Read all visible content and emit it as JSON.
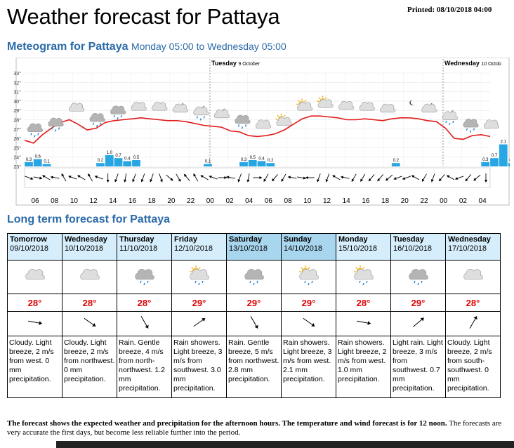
{
  "header": {
    "title": "Weather forecast for Pattaya",
    "printed": "Printed: 08/10/2018 04:00"
  },
  "meteogram": {
    "title": "Meteogram for Pattaya",
    "subtitle": "Monday 05:00 to Wednesday 05:00",
    "day_labels": [
      {
        "day": "Tuesday",
        "date": "9 October"
      },
      {
        "day": "Wednesday",
        "date": "10 Octob"
      }
    ],
    "chart_data": {
      "type": "line",
      "y_ticks": [
        "23°",
        "24°",
        "25°",
        "26°",
        "27°",
        "28°",
        "29°",
        "30°",
        "31°",
        "32°",
        "33°"
      ],
      "ylim": [
        23,
        33
      ],
      "x_labels": [
        "06",
        "08",
        "10",
        "12",
        "14",
        "16",
        "18",
        "20",
        "22",
        "00",
        "02",
        "04",
        "06",
        "08",
        "10",
        "12",
        "14",
        "16",
        "18",
        "20",
        "22",
        "00",
        "02",
        "04"
      ],
      "temperature": [
        25.8,
        25.5,
        26.4,
        27.1,
        27.7,
        28.0,
        27.5,
        26.9,
        27.1,
        27.7,
        27.9,
        28.0,
        28.1,
        28.2,
        28.1,
        28.0,
        27.9,
        27.9,
        27.8,
        27.6,
        27.4,
        27.3,
        27.2,
        26.8,
        26.7,
        26.3,
        26.2,
        26.3,
        26.5,
        26.9,
        27.5,
        28.1,
        28.4,
        28.4,
        28.3,
        28.2,
        28.0,
        28.0,
        28.1,
        28.0,
        27.9,
        28.1,
        28.2,
        28.2,
        28.1,
        27.9,
        27.8,
        27.1,
        26.0,
        25.9,
        26.3,
        26.4,
        26.2
      ],
      "precipitation": [
        {
          "x": 0,
          "value": 0.3,
          "label": "0.3"
        },
        {
          "x": 1,
          "value": 0.6,
          "label": "0.6"
        },
        {
          "x": 2,
          "value": 0.1,
          "label": "0.1"
        },
        {
          "x": 8,
          "value": 0.2,
          "label": "0.2"
        },
        {
          "x": 9,
          "value": 1.0,
          "label": "1.0"
        },
        {
          "x": 10,
          "value": 0.7,
          "label": "0.7"
        },
        {
          "x": 11,
          "value": 0.4,
          "label": "0.4"
        },
        {
          "x": 12,
          "value": 0.5,
          "label": "0.5"
        },
        {
          "x": 20,
          "value": 0.1,
          "label": "0.1"
        },
        {
          "x": 24,
          "value": 0.3,
          "label": "0.3"
        },
        {
          "x": 25,
          "value": 0.5,
          "label": "0.5"
        },
        {
          "x": 26,
          "value": 0.4,
          "label": "0.4"
        },
        {
          "x": 27,
          "value": 0.2,
          "label": "0.2"
        },
        {
          "x": 41,
          "value": 0.2,
          "label": "0.2"
        },
        {
          "x": 51,
          "value": 0.3,
          "label": "0.3"
        },
        {
          "x": 52,
          "value": 0.7,
          "label": "0.7"
        },
        {
          "x": 53,
          "value": 2.1,
          "label": "2.1"
        },
        {
          "x": 54,
          "value": 0.2,
          "label": "0.2"
        }
      ],
      "wind_directions_deg": [
        110,
        100,
        300,
        280,
        330,
        290,
        300,
        330,
        290,
        180,
        200,
        190,
        200,
        200,
        200,
        160,
        130,
        150,
        320,
        330,
        300,
        290,
        90,
        280,
        200,
        190,
        90,
        210,
        220,
        210,
        280,
        100,
        270,
        200,
        200,
        300,
        280,
        210,
        210,
        220,
        220,
        230,
        250,
        250,
        300,
        210,
        200,
        220,
        300,
        250,
        220,
        230,
        180
      ],
      "symbols": [
        "cloud-rain",
        "cloud-rain",
        "cloud",
        "cloud-rain",
        "cloud-rain",
        "cloud",
        "cloud",
        "moon-cloud",
        "moon-cloud-rain",
        "moon-cloud",
        "cloud-rain",
        "cloud",
        "sun-cloud",
        "sun-cloud",
        "sun-cloud",
        "cloud",
        "cloud",
        "cloud",
        "moon",
        "moon-cloud",
        "moon-cloud-rain",
        "cloud-rain",
        "cloud"
      ]
    }
  },
  "long_term": {
    "title": "Long term forecast for Pattaya",
    "days": [
      {
        "day": "Tomorrow",
        "date": "09/10/2018",
        "weekend": false,
        "symbol": "cloud",
        "temp": "28°",
        "wind_deg": 100,
        "text": "Cloudy. Light breeze, 2 m/s from west. 0 mm precipitation."
      },
      {
        "day": "Wednesday",
        "date": "10/10/2018",
        "weekend": false,
        "symbol": "cloud",
        "temp": "28°",
        "wind_deg": 125,
        "text": "Cloudy. Light breeze, 2 m/s from northwest. 0 mm precipitation."
      },
      {
        "day": "Thursday",
        "date": "11/10/2018",
        "weekend": false,
        "symbol": "cloud-rain",
        "temp": "28°",
        "wind_deg": 150,
        "text": "Rain. Gentle breeze, 4 m/s from north-northwest. 1.2 mm precipitation."
      },
      {
        "day": "Friday",
        "date": "12/10/2018",
        "weekend": false,
        "symbol": "sun-cloud-rain",
        "temp": "29°",
        "wind_deg": 55,
        "text": "Rain showers. Light breeze, 3 m/s from southwest. 3.0 mm precipitation."
      },
      {
        "day": "Saturday",
        "date": "13/10/2018",
        "weekend": true,
        "symbol": "cloud-rain",
        "temp": "29°",
        "wind_deg": 150,
        "text": "Rain. Gentle breeze, 5 m/s from northwest. 2.8 mm precipitation."
      },
      {
        "day": "Sunday",
        "date": "14/10/2018",
        "weekend": true,
        "symbol": "sun-cloud-rain",
        "temp": "29°",
        "wind_deg": 125,
        "text": "Rain showers. Light breeze, 3 m/s from west. 2.1 mm precipitation."
      },
      {
        "day": "Monday",
        "date": "15/10/2018",
        "weekend": false,
        "symbol": "sun-cloud-rain",
        "temp": "28°",
        "wind_deg": 100,
        "text": "Rain showers. Light breeze, 2 m/s from west. 1.0 mm precipitation."
      },
      {
        "day": "Tuesday",
        "date": "16/10/2018",
        "weekend": false,
        "symbol": "cloud-rain",
        "temp": "29°",
        "wind_deg": 50,
        "text": "Light rain. Light breeze, 3 m/s from southwest. 0.7 mm precipitation."
      },
      {
        "day": "Wednesday",
        "date": "17/10/2018",
        "weekend": false,
        "symbol": "cloud",
        "temp": "28°",
        "wind_deg": 30,
        "text": "Cloudy. Light breeze, 2 m/s from south-southwest. 0 mm precipitation."
      }
    ]
  },
  "footnote": {
    "bold": "The forecast shows the expected weather and precipitation for the afternoon hours. The temperature and wind forecast is for 12 noon.",
    "normal": "The forecasts are very accurate the first days, but become less reliable further into the period."
  },
  "colors": {
    "heading": "#2a6aa8",
    "temp_line": "#e21a1a",
    "precip_bar": "#27a6e3",
    "header_cell": "#d6eefb",
    "weekend_cell": "#a9d6ef",
    "temp_text": "#e00000"
  }
}
